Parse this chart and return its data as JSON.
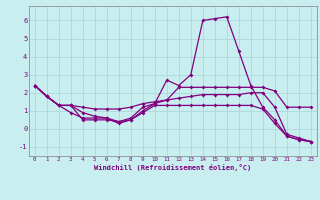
{
  "xlabel": "Windchill (Refroidissement éolien,°C)",
  "background_color": "#c8eef0",
  "grid_color": "#aad4d8",
  "line_color": "#800080",
  "spine_color": "#808080",
  "xlim": [
    -0.5,
    23.5
  ],
  "ylim": [
    -1.5,
    6.8
  ],
  "yticks": [
    -1,
    0,
    1,
    2,
    3,
    4,
    5,
    6
  ],
  "xticks": [
    0,
    1,
    2,
    3,
    4,
    5,
    6,
    7,
    8,
    9,
    10,
    11,
    12,
    13,
    14,
    15,
    16,
    17,
    18,
    19,
    20,
    21,
    22,
    23
  ],
  "series": [
    [
      2.4,
      1.8,
      1.3,
      0.9,
      0.6,
      0.6,
      0.6,
      0.3,
      0.5,
      1.0,
      1.4,
      2.7,
      2.4,
      3.0,
      6.0,
      6.1,
      6.2,
      4.3,
      2.4,
      1.2,
      0.5,
      -0.4,
      -0.6,
      -0.7
    ],
    [
      2.4,
      1.8,
      1.3,
      1.3,
      0.9,
      0.7,
      0.6,
      0.4,
      0.6,
      1.2,
      1.4,
      1.6,
      2.3,
      2.3,
      2.3,
      2.3,
      2.3,
      2.3,
      2.3,
      2.3,
      2.1,
      1.2,
      1.2,
      1.2
    ],
    [
      2.4,
      1.8,
      1.3,
      1.3,
      1.2,
      1.1,
      1.1,
      1.1,
      1.2,
      1.4,
      1.5,
      1.6,
      1.7,
      1.8,
      1.9,
      1.9,
      1.9,
      1.9,
      2.0,
      2.0,
      1.2,
      -0.3,
      -0.5,
      -0.7
    ],
    [
      2.4,
      1.8,
      1.3,
      1.3,
      0.5,
      0.5,
      0.5,
      0.4,
      0.5,
      0.9,
      1.3,
      1.3,
      1.3,
      1.3,
      1.3,
      1.3,
      1.3,
      1.3,
      1.3,
      1.1,
      0.3,
      -0.4,
      -0.6,
      -0.7
    ]
  ]
}
